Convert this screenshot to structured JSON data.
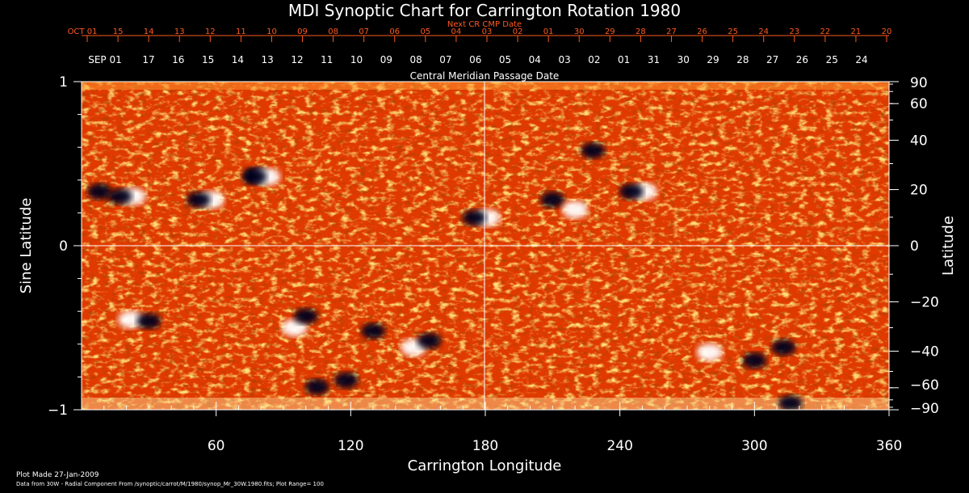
{
  "chart_data": {
    "type": "heatmap",
    "title": "MDI Synoptic Chart for Carrington Rotation 1980",
    "top_axis_label": "Next CR CMP Date",
    "top_ticks": [
      "OCT 01",
      "15",
      "14",
      "13",
      "12",
      "11",
      "10",
      "09",
      "08",
      "07",
      "06",
      "05",
      "04",
      "03",
      "02",
      "01",
      "30",
      "29",
      "28",
      "27",
      "26",
      "25",
      "24",
      "23",
      "22",
      "21",
      "20"
    ],
    "second_axis_label": "Central Meridian Passage Date",
    "second_ticks": [
      "SEP 01",
      "17",
      "16",
      "15",
      "14",
      "13",
      "12",
      "11",
      "10",
      "09",
      "08",
      "07",
      "06",
      "05",
      "04",
      "03",
      "02",
      "01",
      "31",
      "30",
      "29",
      "28",
      "27",
      "26",
      "25",
      "24"
    ],
    "xlabel": "Carrington Longitude",
    "xlim": [
      0,
      360
    ],
    "x_ticks": [
      60,
      120,
      180,
      240,
      300,
      360
    ],
    "ylabel_left": "Sine Latitude",
    "ylim_left": [
      -1,
      1
    ],
    "y_ticks_left": [
      1,
      0,
      -1
    ],
    "ylabel_right": "Latitude",
    "y_ticks_right": [
      90,
      60,
      40,
      20,
      0,
      -20,
      -40,
      -60,
      -90
    ],
    "grid": "crosshair at longitude 180 and sine latitude 0",
    "colormap": [
      "#000010",
      "#1a1060",
      "#b02000",
      "#ff5a00",
      "#ffd040",
      "#ffffff"
    ],
    "plot_range": 100,
    "active_regions": [
      {
        "longitude": 8,
        "sine_latitude": 0.33,
        "polarity": "negative"
      },
      {
        "longitude": 20,
        "sine_latitude": 0.3,
        "polarity": "mixed"
      },
      {
        "longitude": 55,
        "sine_latitude": 0.28,
        "polarity": "mixed"
      },
      {
        "longitude": 78,
        "sine_latitude": 0.43,
        "polarity": "negative"
      },
      {
        "longitude": 80,
        "sine_latitude": 0.42,
        "polarity": "mixed"
      },
      {
        "longitude": 178,
        "sine_latitude": 0.17,
        "polarity": "mixed"
      },
      {
        "longitude": 210,
        "sine_latitude": 0.28,
        "polarity": "negative"
      },
      {
        "longitude": 220,
        "sine_latitude": 0.22,
        "polarity": "positive"
      },
      {
        "longitude": 228,
        "sine_latitude": 0.58,
        "polarity": "negative"
      },
      {
        "longitude": 248,
        "sine_latitude": 0.33,
        "polarity": "mixed"
      },
      {
        "longitude": 22,
        "sine_latitude": -0.45,
        "polarity": "positive"
      },
      {
        "longitude": 30,
        "sine_latitude": -0.46,
        "polarity": "negative"
      },
      {
        "longitude": 95,
        "sine_latitude": -0.5,
        "polarity": "positive"
      },
      {
        "longitude": 100,
        "sine_latitude": -0.43,
        "polarity": "negative"
      },
      {
        "longitude": 105,
        "sine_latitude": -0.86,
        "polarity": "negative"
      },
      {
        "longitude": 118,
        "sine_latitude": -0.82,
        "polarity": "negative"
      },
      {
        "longitude": 130,
        "sine_latitude": -0.52,
        "polarity": "negative"
      },
      {
        "longitude": 148,
        "sine_latitude": -0.62,
        "polarity": "positive"
      },
      {
        "longitude": 155,
        "sine_latitude": -0.58,
        "polarity": "negative"
      },
      {
        "longitude": 280,
        "sine_latitude": -0.65,
        "polarity": "positive"
      },
      {
        "longitude": 300,
        "sine_latitude": -0.7,
        "polarity": "negative"
      },
      {
        "longitude": 313,
        "sine_latitude": -0.62,
        "polarity": "negative"
      },
      {
        "longitude": 316,
        "sine_latitude": -0.96,
        "polarity": "negative"
      }
    ]
  },
  "footer": {
    "plot_made": "Plot Made 27-Jan-2009",
    "data_source": "Data from 30W - Radial Component From /synoptic/carrot/M/1980/synop_Mr_30W.1980.fits; Plot Range=  100"
  }
}
